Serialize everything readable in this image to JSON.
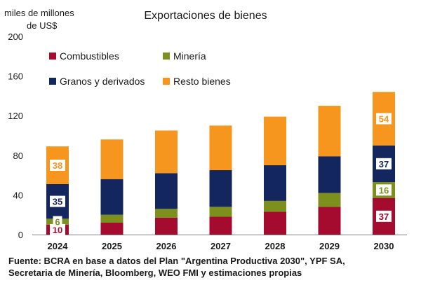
{
  "chart_data": {
    "type": "bar",
    "stacked": true,
    "title": "Exportaciones de bienes",
    "ylabel_lines": [
      "miles de millones",
      "de US$"
    ],
    "ylim": [
      0,
      200
    ],
    "yticks": [
      0,
      40,
      80,
      120,
      160,
      200
    ],
    "grid": false,
    "legend_position": "top-left",
    "categories": [
      "2024",
      "2025",
      "2026",
      "2027",
      "2028",
      "2029",
      "2030"
    ],
    "series": [
      {
        "name": "Combustibles",
        "color": "#a50b2e",
        "values": [
          10,
          12,
          17,
          18,
          23,
          28,
          37
        ]
      },
      {
        "name": "Minería",
        "color": "#7d8f1c",
        "values": [
          6,
          8,
          9,
          10,
          11,
          14,
          16
        ]
      },
      {
        "name": "Granos y derivados",
        "color": "#14265e",
        "values": [
          35,
          36,
          36,
          37,
          36,
          37,
          37
        ]
      },
      {
        "name": "Resto bienes",
        "color": "#f7961e",
        "values": [
          38,
          40,
          43,
          45,
          49,
          51,
          54
        ]
      }
    ],
    "data_labels": [
      {
        "category": "2024",
        "series": "Combustibles",
        "text": "10"
      },
      {
        "category": "2024",
        "series": "Minería",
        "text": "6"
      },
      {
        "category": "2024",
        "series": "Granos y derivados",
        "text": "35"
      },
      {
        "category": "2024",
        "series": "Resto bienes",
        "text": "38"
      },
      {
        "category": "2030",
        "series": "Combustibles",
        "text": "37"
      },
      {
        "category": "2030",
        "series": "Minería",
        "text": "16"
      },
      {
        "category": "2030",
        "series": "Granos y derivados",
        "text": "37"
      },
      {
        "category": "2030",
        "series": "Resto bienes",
        "text": "54"
      }
    ]
  },
  "source_lines": [
    "Fuente: BCRA en base a datos del Plan \"Argentina Productiva 2030\", YPF SA,",
    "Secretaria de Minería, Bloomberg, WEO FMI y estimaciones propias"
  ]
}
